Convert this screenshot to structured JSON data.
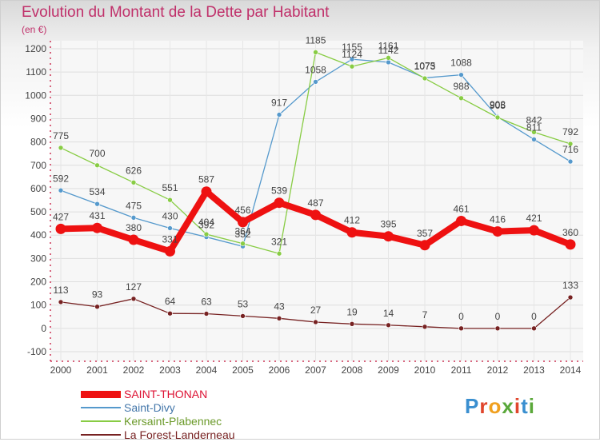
{
  "title": "Evolution du Montant de la Dette par Habitant",
  "unit": "(en €)",
  "brand": "Proxiti",
  "chart_data": {
    "type": "line",
    "title": "Evolution du Montant de la Dette par Habitant",
    "ylabel": "(en €)",
    "xlabel": "",
    "x": [
      "2000",
      "2001",
      "2002",
      "2003",
      "2004",
      "2005",
      "2006",
      "2007",
      "2008",
      "2009",
      "2010",
      "2011",
      "2012",
      "2013",
      "2014"
    ],
    "ylim": [
      -100,
      1200
    ],
    "yticks": [
      -100,
      0,
      100,
      200,
      300,
      400,
      500,
      600,
      700,
      800,
      900,
      1000,
      1100,
      1200
    ],
    "grid": true,
    "legend_position": "bottom-left",
    "series": [
      {
        "name": "SAINT-THONAN",
        "color": "#ee1111",
        "values": [
          427,
          431,
          380,
          331,
          587,
          456,
          539,
          487,
          412,
          395,
          357,
          461,
          416,
          421,
          360
        ],
        "labels": [
          "427",
          "431",
          "380",
          "331",
          "587",
          "456",
          "539",
          "487",
          "412",
          "395",
          "357",
          "461",
          "416",
          "421",
          "360"
        ]
      },
      {
        "name": "Saint-Divy",
        "color": "#5599cc",
        "values": [
          592,
          534,
          475,
          430,
          392,
          352,
          917,
          1058,
          1155,
          1142,
          1075,
          1088,
          908,
          811,
          716
        ],
        "labels": [
          "592",
          "534",
          "475",
          "430",
          "392",
          "352",
          "917",
          "1058",
          "1155",
          "1142",
          "1075",
          "1088",
          "908",
          "811",
          "716"
        ]
      },
      {
        "name": "Kersaint-Plabennec",
        "color": "#88cc44",
        "values": [
          775,
          700,
          626,
          551,
          404,
          364,
          321,
          1185,
          1124,
          1161,
          1073,
          988,
          905,
          842,
          792
        ],
        "labels": [
          "775",
          "700",
          "626",
          "551",
          "404",
          "364",
          "321",
          "1185",
          "1124",
          "1161",
          "1073",
          "988",
          "905",
          "842",
          "792"
        ]
      },
      {
        "name": "La Forest-Landerneau",
        "color": "#772222",
        "values": [
          113,
          93,
          127,
          64,
          63,
          53,
          43,
          27,
          19,
          14,
          7,
          0,
          0,
          0,
          133
        ],
        "labels": [
          "113",
          "93",
          "127",
          "64",
          "63",
          "53",
          "43",
          "27",
          "19",
          "14",
          "7",
          "0",
          "0",
          "0",
          "133"
        ]
      }
    ]
  }
}
